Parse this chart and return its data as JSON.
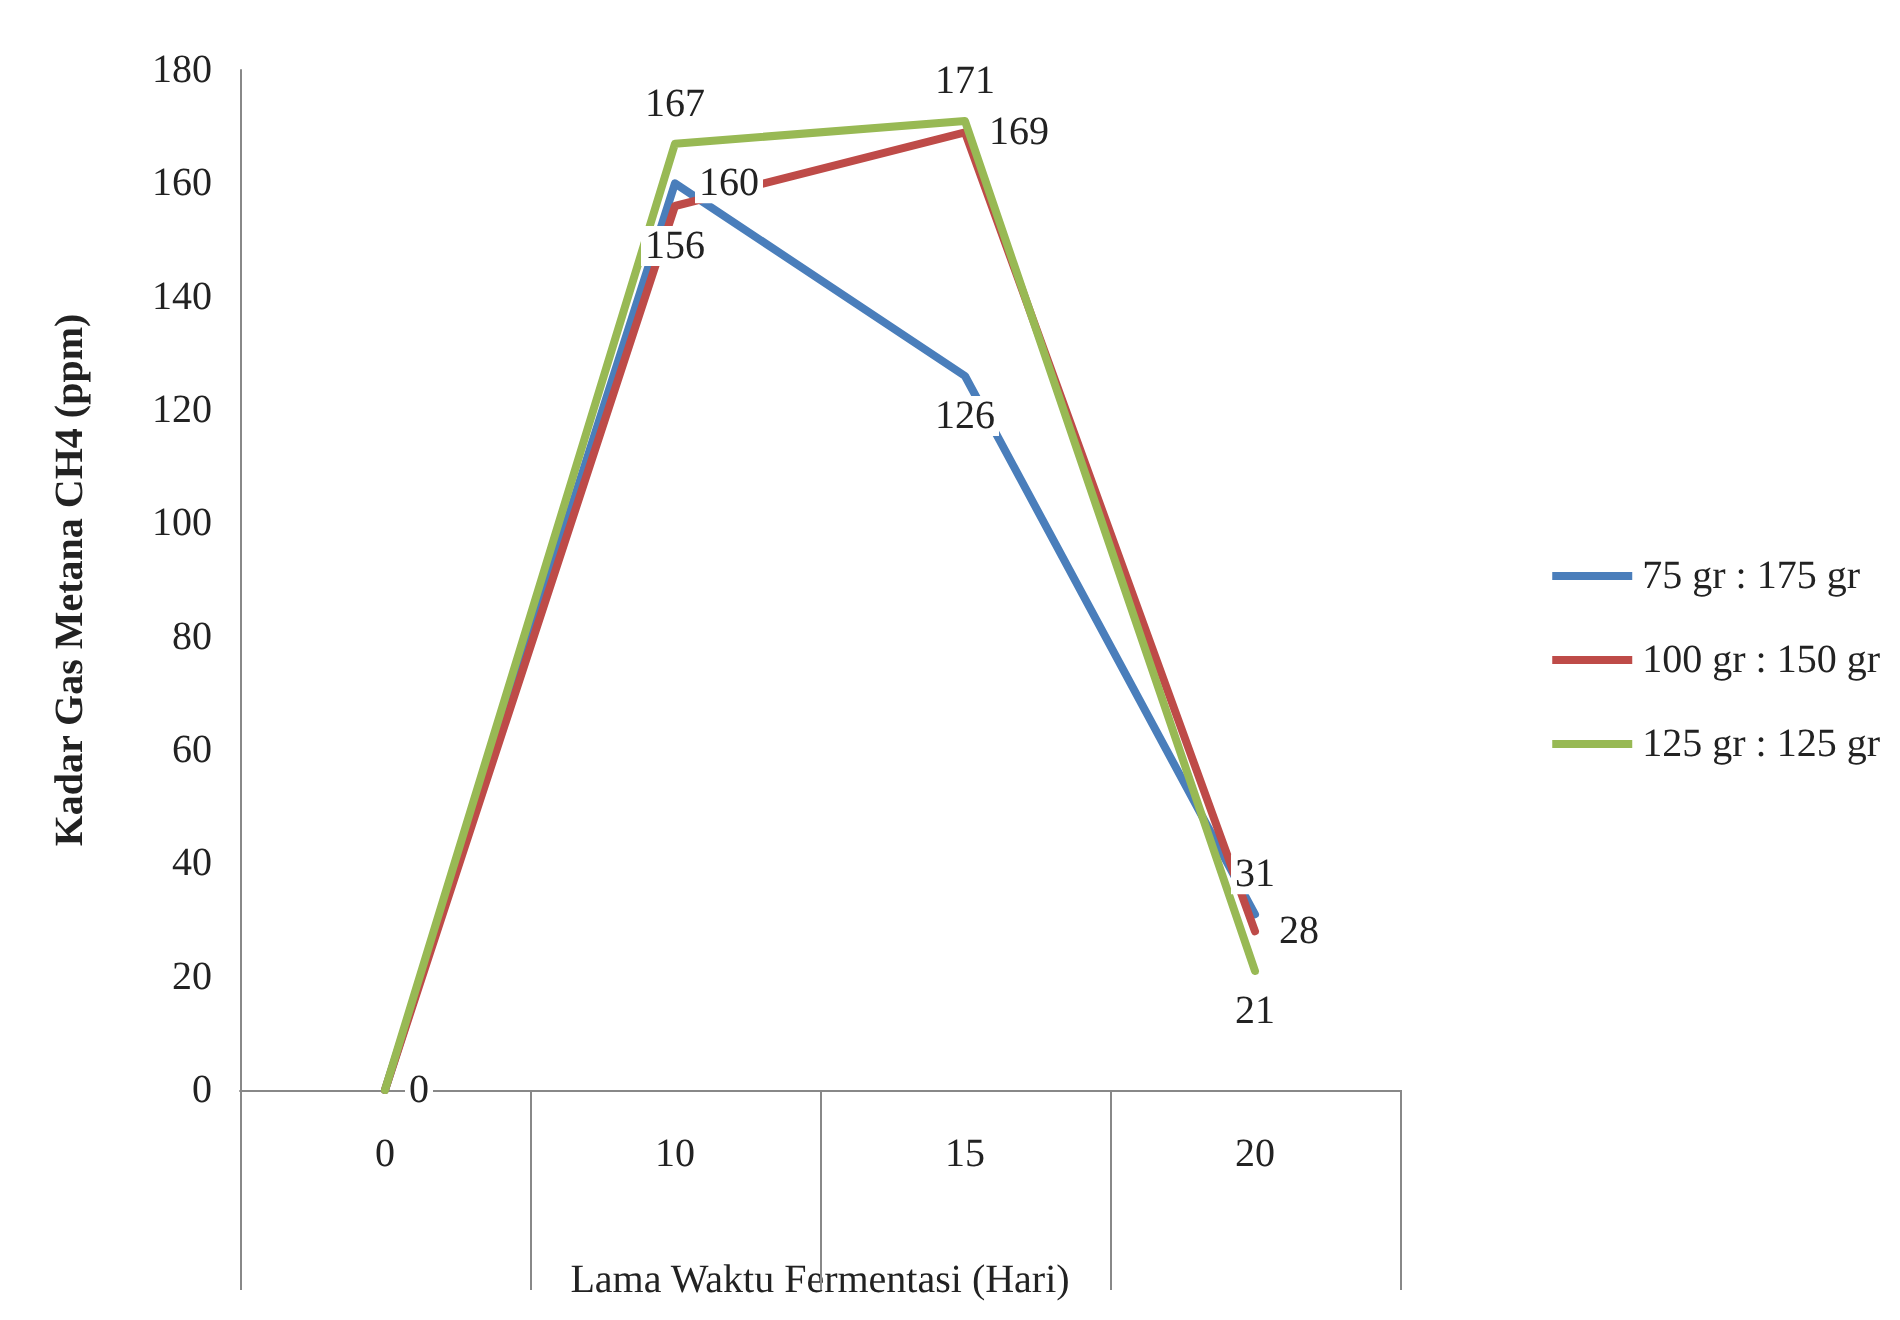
{
  "chart_data": {
    "type": "line",
    "xlabel": "Lama Waktu Fermentasi (Hari)",
    "ylabel": "Kadar Gas Metana CH4 (ppm)",
    "categories": [
      "0",
      "10",
      "15",
      "20"
    ],
    "series": [
      {
        "name": "75 gr : 175 gr",
        "color": "#4a7ebb",
        "values": [
          0,
          160,
          126,
          31
        ],
        "value_labels": [
          "0",
          "160",
          "126",
          "31"
        ]
      },
      {
        "name": "100 gr : 150 gr",
        "color": "#be4b48",
        "values": [
          0,
          156,
          169,
          28
        ],
        "value_labels": [
          null,
          "156",
          "169",
          "28"
        ]
      },
      {
        "name": "125 gr : 125 gr",
        "color": "#98b954",
        "values": [
          0,
          167,
          171,
          21
        ],
        "value_labels": [
          null,
          "167",
          "171",
          "21"
        ]
      }
    ],
    "ylim": [
      0,
      180
    ],
    "yticks": [
      0,
      20,
      40,
      60,
      80,
      100,
      120,
      140,
      160,
      180
    ],
    "grid": false,
    "legend": "right",
    "marker": "none",
    "line_style": "solid"
  }
}
